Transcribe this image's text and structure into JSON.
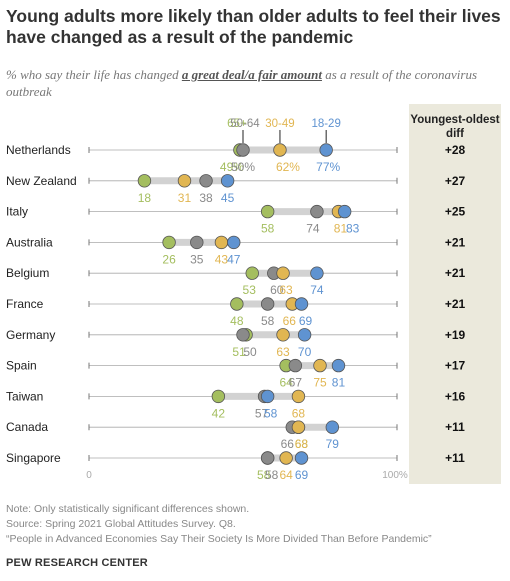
{
  "header": {
    "title": "Young adults more likely than older adults to feel their lives have changed as a result of the pandemic",
    "subtitle_pre": "% who say their life has changed ",
    "subtitle_emph": "a great deal/a fair amount",
    "subtitle_post": " as a result of the coronavirus outbreak",
    "diff_header": "Youngest-oldest diff"
  },
  "footer": {
    "note": "Note: Only statistically significant differences shown.",
    "source": "Source: Spring 2021 Global Attitudes Survey. Q8.",
    "report": "“People in Advanced Economies Say Their Society Is More Divided Than Before Pandemic”",
    "brand": "PEW RESEARCH CENTER"
  },
  "colors": {
    "age_65_plus": "#a4be5f",
    "age_50_64": "#8a8a8a",
    "age_30_49": "#e1b652",
    "age_18_29": "#5f93d1",
    "diff_column_bg": "#ebe9dc"
  },
  "chart_data": {
    "type": "dot",
    "xlim": [
      0,
      100
    ],
    "axis_tick_labels": [
      "0",
      "100%"
    ],
    "series": [
      {
        "name": "65+",
        "color": "#a4be5f",
        "values": [
          49,
          18,
          58,
          26,
          53,
          48,
          51,
          64,
          42,
          68,
          58
        ]
      },
      {
        "name": "50-64",
        "color": "#8a8a8a",
        "values": [
          50,
          38,
          74,
          35,
          60,
          58,
          50,
          67,
          57,
          66,
          58
        ]
      },
      {
        "name": "30-49",
        "color": "#e1b652",
        "values": [
          62,
          31,
          81,
          43,
          63,
          66,
          63,
          75,
          68,
          68,
          64
        ]
      },
      {
        "name": "18-29",
        "color": "#5f93d1",
        "values": [
          77,
          45,
          83,
          47,
          74,
          69,
          70,
          81,
          58,
          79,
          69
        ]
      }
    ],
    "categories": [
      "Netherlands",
      "New Zealand",
      "Italy",
      "Australia",
      "Belgium",
      "France",
      "Germany",
      "Spain",
      "Taiwan",
      "Canada",
      "Singapore"
    ],
    "point_labels": [
      [
        "49%",
        "50%",
        "62%",
        "77%"
      ],
      [
        "18",
        "38",
        "31",
        "45"
      ],
      [
        "58",
        "74",
        "81",
        "83"
      ],
      [
        "26",
        "35",
        "43",
        "47"
      ],
      [
        "53",
        "60",
        "63",
        "74"
      ],
      [
        "48",
        "58",
        "66",
        "69"
      ],
      [
        "51",
        "50",
        "63",
        "70"
      ],
      [
        "64",
        "67",
        "75",
        "81"
      ],
      [
        "42",
        "57",
        "68",
        "58"
      ],
      [
        "68",
        "66",
        "68",
        "79"
      ],
      [
        "58",
        "58",
        "64",
        "69"
      ]
    ],
    "diffs": [
      "+28",
      "+27",
      "+25",
      "+21",
      "+21",
      "+21",
      "+19",
      "+17",
      "+16",
      "+11",
      "+11"
    ]
  }
}
